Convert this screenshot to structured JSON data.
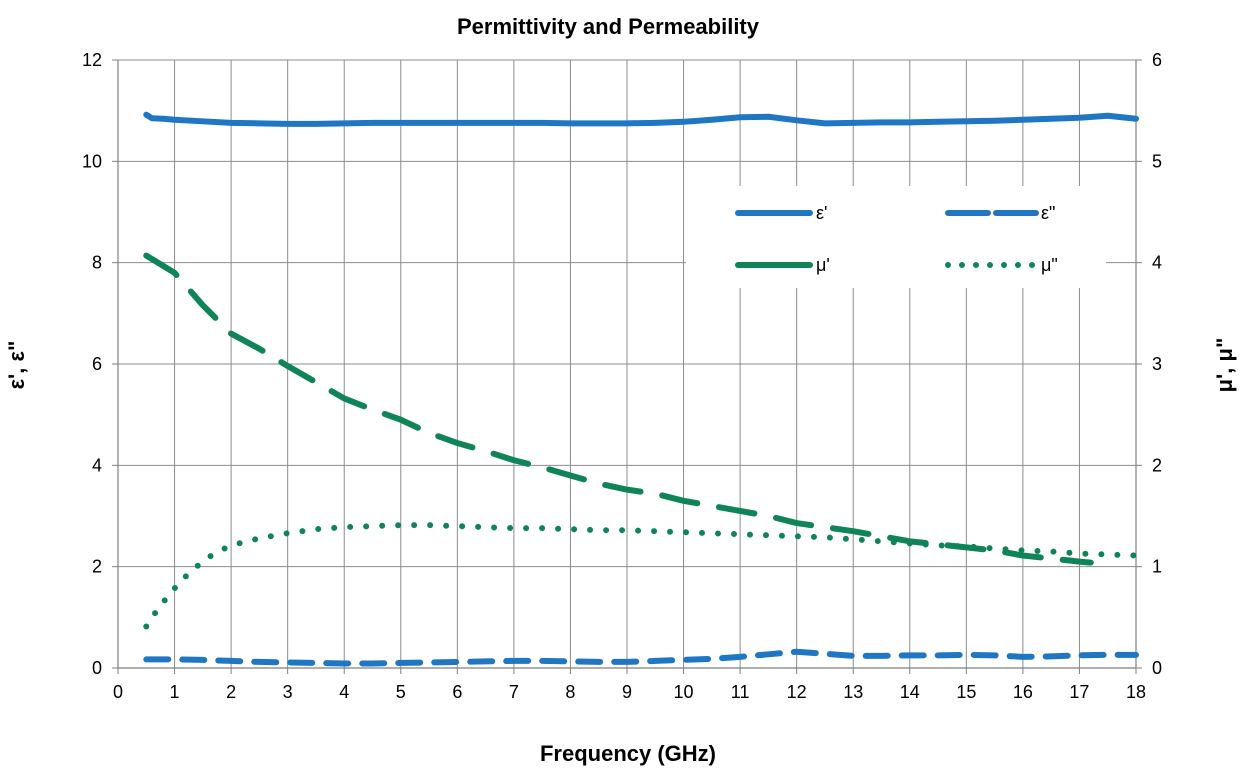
{
  "chart_data": {
    "type": "line",
    "title": "Permittivity and Permeability",
    "xlabel": "Frequency (GHz)",
    "ylabel_left": "ε', ε\"",
    "ylabel_right": "μ', μ\"",
    "xlim": [
      0,
      18
    ],
    "ylim_left": [
      0,
      12
    ],
    "ylim_right": [
      0,
      6
    ],
    "x_ticks": [
      "0",
      "1",
      "2",
      "3",
      "4",
      "5",
      "6",
      "7",
      "8",
      "9",
      "10",
      "11",
      "12",
      "13",
      "14",
      "15",
      "16",
      "17",
      "18"
    ],
    "y_left_ticks": [
      "0",
      "2",
      "4",
      "6",
      "8",
      "10",
      "12"
    ],
    "y_right_ticks": [
      "0",
      "1",
      "2",
      "3",
      "4",
      "5",
      "6"
    ],
    "grid": true,
    "legend_position": "top-right",
    "colors": {
      "blue": "#1f77c4",
      "green": "#0f8457"
    },
    "series": [
      {
        "name": "ε'",
        "axis": "left",
        "style": "solid",
        "color": "#1f77c4",
        "x": [
          0.5,
          0.6,
          0.8,
          1.0,
          1.5,
          2.0,
          2.5,
          3.0,
          3.5,
          4.0,
          4.5,
          5.0,
          5.5,
          6.0,
          6.5,
          7.0,
          7.5,
          8.0,
          8.5,
          9.0,
          9.5,
          10.0,
          10.5,
          11.0,
          11.5,
          12.0,
          12.5,
          13.0,
          13.5,
          14.0,
          14.5,
          15.0,
          15.5,
          16.0,
          16.5,
          17.0,
          17.5,
          18.0
        ],
        "y": [
          10.92,
          10.85,
          10.84,
          10.82,
          10.79,
          10.76,
          10.75,
          10.74,
          10.74,
          10.75,
          10.76,
          10.76,
          10.76,
          10.76,
          10.76,
          10.76,
          10.76,
          10.75,
          10.75,
          10.75,
          10.76,
          10.78,
          10.82,
          10.87,
          10.88,
          10.81,
          10.75,
          10.76,
          10.77,
          10.77,
          10.78,
          10.79,
          10.8,
          10.82,
          10.84,
          10.86,
          10.9,
          10.84
        ]
      },
      {
        "name": "ε\"",
        "axis": "left",
        "style": "dashed",
        "color": "#1f77c4",
        "x": [
          0.5,
          1.0,
          1.5,
          2.0,
          2.5,
          3.0,
          3.5,
          4.0,
          4.5,
          5.0,
          5.5,
          6.0,
          6.5,
          7.0,
          7.5,
          8.0,
          8.5,
          9.0,
          9.5,
          10.0,
          10.5,
          11.0,
          11.5,
          12.0,
          12.5,
          13.0,
          13.5,
          14.0,
          14.5,
          15.0,
          15.5,
          16.0,
          16.5,
          17.0,
          17.5,
          18.0
        ],
        "y": [
          0.17,
          0.17,
          0.16,
          0.14,
          0.12,
          0.11,
          0.1,
          0.09,
          0.09,
          0.1,
          0.11,
          0.12,
          0.13,
          0.14,
          0.14,
          0.13,
          0.12,
          0.12,
          0.14,
          0.16,
          0.18,
          0.22,
          0.27,
          0.32,
          0.28,
          0.24,
          0.24,
          0.25,
          0.25,
          0.26,
          0.25,
          0.22,
          0.23,
          0.25,
          0.26,
          0.26
        ]
      },
      {
        "name": "μ'",
        "axis": "right",
        "style": "long-dash",
        "color": "#0f8457",
        "x": [
          0.5,
          1.0,
          1.5,
          2.0,
          2.5,
          3.0,
          3.5,
          4.0,
          4.5,
          5.0,
          5.5,
          6.0,
          6.5,
          7.0,
          7.5,
          8.0,
          8.5,
          9.0,
          9.5,
          10.0,
          10.5,
          11.0,
          11.5,
          12.0,
          12.5,
          13.0,
          13.5,
          14.0,
          14.5,
          15.0,
          15.5,
          16.0,
          16.5,
          17.0,
          17.2
        ],
        "y": [
          4.07,
          3.9,
          3.58,
          3.3,
          3.15,
          2.98,
          2.82,
          2.66,
          2.55,
          2.45,
          2.32,
          2.22,
          2.14,
          2.05,
          1.98,
          1.9,
          1.82,
          1.76,
          1.72,
          1.65,
          1.6,
          1.55,
          1.5,
          1.43,
          1.39,
          1.35,
          1.3,
          1.25,
          1.22,
          1.19,
          1.16,
          1.11,
          1.08,
          1.05,
          1.04
        ]
      },
      {
        "name": "μ\"",
        "axis": "right",
        "style": "dotted",
        "color": "#0f8457",
        "x": [
          0.5,
          0.7,
          0.9,
          1.1,
          1.3,
          1.5,
          1.7,
          2.0,
          2.5,
          3.0,
          3.5,
          4.0,
          4.5,
          5.0,
          5.5,
          6.0,
          6.5,
          7.0,
          7.5,
          8.0,
          8.5,
          9.0,
          9.5,
          10.0,
          10.5,
          11.0,
          11.5,
          12.0,
          12.5,
          13.0,
          13.5,
          14.0,
          14.5,
          15.0,
          15.5,
          16.0,
          16.5,
          17.0,
          17.5,
          18.0
        ],
        "y": [
          0.41,
          0.58,
          0.72,
          0.85,
          0.96,
          1.05,
          1.13,
          1.21,
          1.28,
          1.33,
          1.37,
          1.39,
          1.4,
          1.41,
          1.41,
          1.4,
          1.39,
          1.38,
          1.38,
          1.37,
          1.36,
          1.36,
          1.35,
          1.34,
          1.33,
          1.32,
          1.31,
          1.3,
          1.29,
          1.27,
          1.25,
          1.23,
          1.21,
          1.2,
          1.18,
          1.16,
          1.15,
          1.13,
          1.12,
          1.11
        ]
      }
    ]
  }
}
